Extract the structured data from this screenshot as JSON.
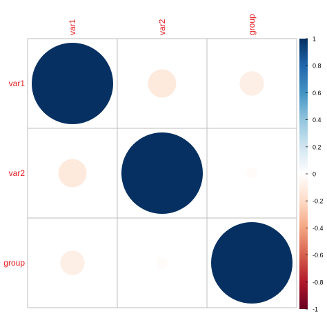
{
  "chart_data": {
    "type": "heatmap",
    "variables": [
      "var1",
      "var2",
      "group"
    ],
    "matrix": [
      [
        1.0,
        -0.12,
        -0.09
      ],
      [
        -0.12,
        1.0,
        -0.02
      ],
      [
        -0.09,
        -0.02,
        1.0
      ]
    ],
    "colorbar": {
      "range": [
        -1,
        1
      ],
      "ticks": [
        "1",
        "0.8",
        "0.6",
        "0.4",
        "0.2",
        "0",
        "-0.2",
        "-0.4",
        "-0.6",
        "-0.8",
        "-1"
      ],
      "gradient": [
        "#67001F",
        "#B2182B",
        "#D6604D",
        "#F4A582",
        "#FDDBC7",
        "#FFFFFF",
        "#D1E5F0",
        "#92C5DE",
        "#4393C3",
        "#2166AC",
        "#053061"
      ]
    },
    "label_color": "#E31A1C",
    "grid_color": "#BEBEBE"
  }
}
